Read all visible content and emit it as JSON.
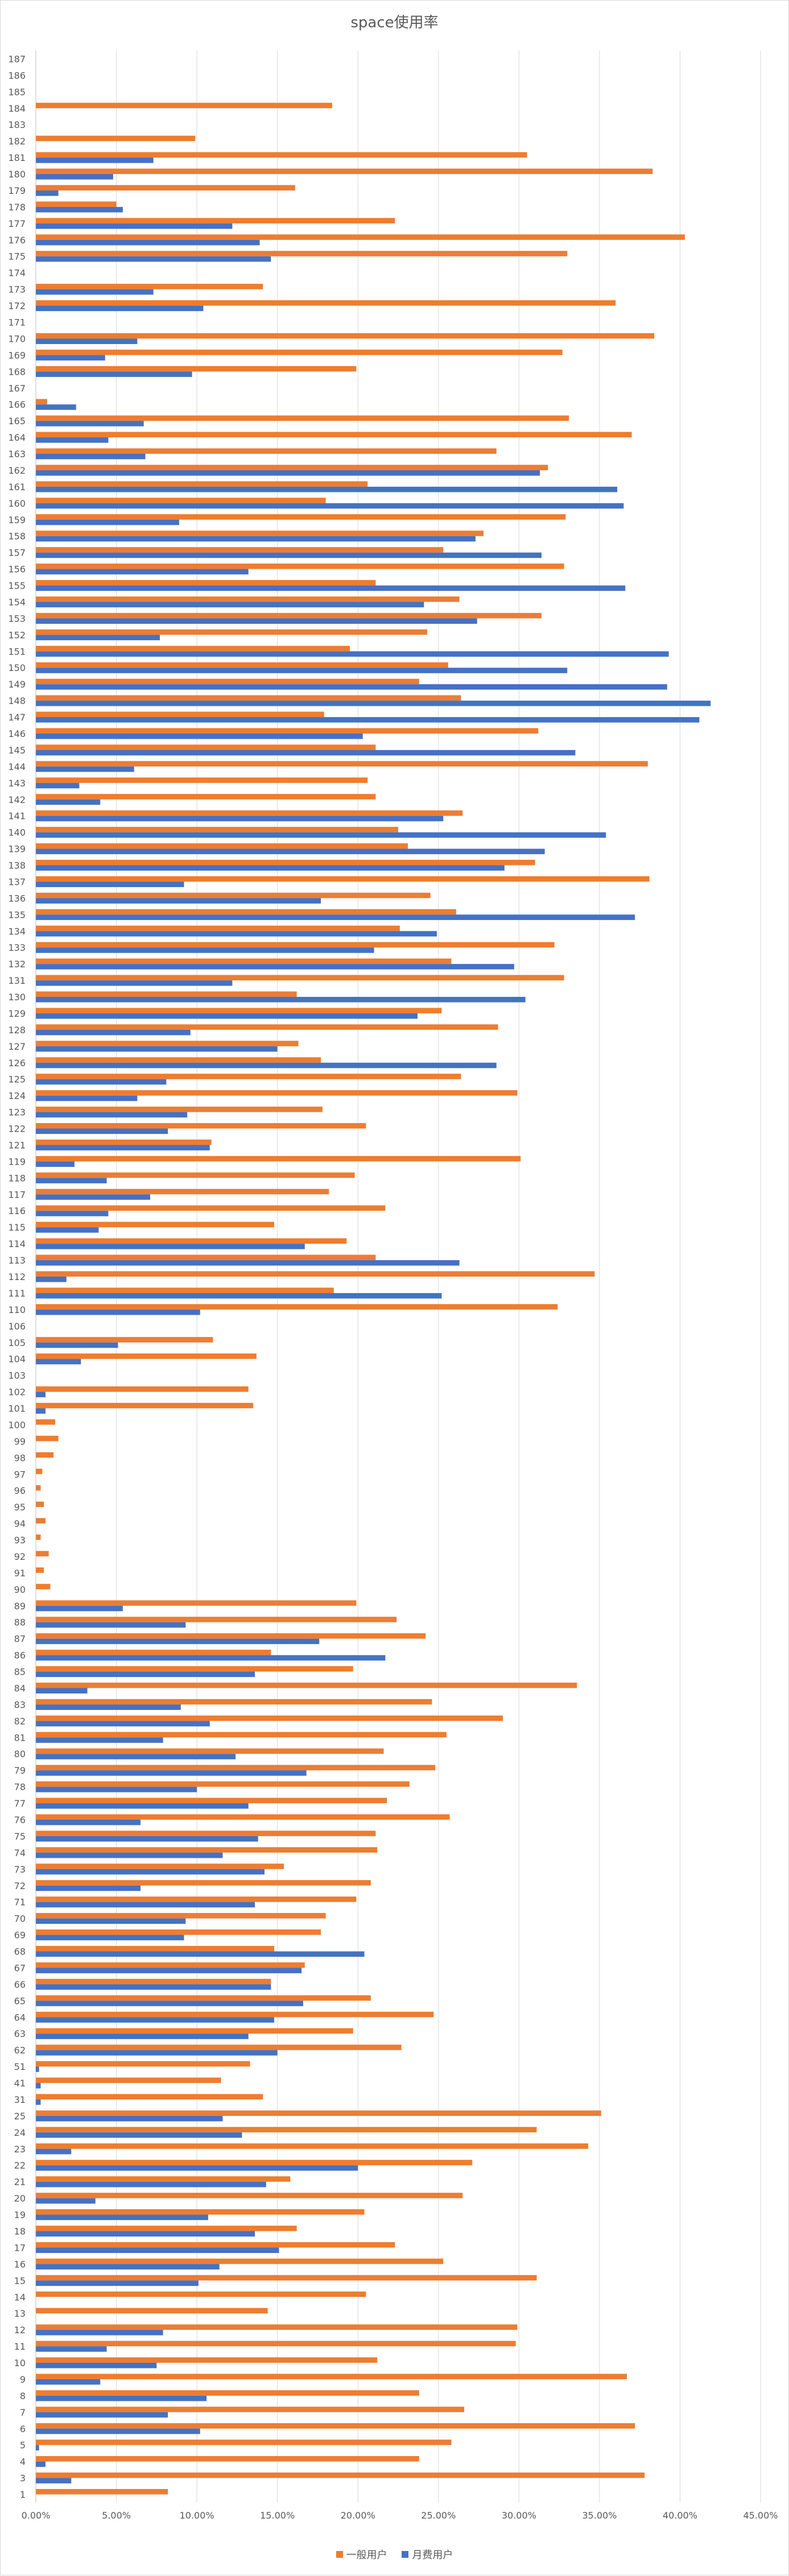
{
  "chart_data": {
    "type": "bar",
    "orientation": "horizontal",
    "title": "space使用率",
    "xlim": [
      0,
      45
    ],
    "x_ticks": [
      "0.00%",
      "5.00%",
      "10.00%",
      "15.00%",
      "20.00%",
      "25.00%",
      "30.00%",
      "35.00%",
      "40.00%",
      "45.00%"
    ],
    "grid": true,
    "legend_position": "bottom",
    "categories": [
      "1",
      "3",
      "4",
      "5",
      "6",
      "7",
      "8",
      "9",
      "10",
      "11",
      "12",
      "13",
      "14",
      "15",
      "16",
      "17",
      "18",
      "19",
      "20",
      "21",
      "22",
      "23",
      "24",
      "25",
      "31",
      "41",
      "51",
      "62",
      "63",
      "64",
      "65",
      "66",
      "67",
      "68",
      "69",
      "70",
      "71",
      "72",
      "73",
      "74",
      "75",
      "76",
      "77",
      "78",
      "79",
      "80",
      "81",
      "82",
      "83",
      "84",
      "85",
      "86",
      "87",
      "88",
      "89",
      "90",
      "91",
      "92",
      "93",
      "94",
      "95",
      "96",
      "97",
      "98",
      "99",
      "100",
      "101",
      "102",
      "103",
      "104",
      "105",
      "106",
      "110",
      "111",
      "112",
      "113",
      "114",
      "115",
      "116",
      "117",
      "118",
      "119",
      "121",
      "122",
      "123",
      "124",
      "125",
      "126",
      "127",
      "128",
      "129",
      "130",
      "131",
      "132",
      "133",
      "134",
      "135",
      "136",
      "137",
      "138",
      "139",
      "140",
      "141",
      "142",
      "143",
      "144",
      "145",
      "146",
      "147",
      "148",
      "149",
      "150",
      "151",
      "152",
      "153",
      "154",
      "155",
      "156",
      "157",
      "158",
      "159",
      "160",
      "161",
      "162",
      "163",
      "164",
      "165",
      "166",
      "167",
      "168",
      "169",
      "170",
      "171",
      "172",
      "173",
      "174",
      "175",
      "176",
      "177",
      "178",
      "179",
      "180",
      "181",
      "182",
      "183",
      "184",
      "185",
      "186",
      "187"
    ],
    "series": [
      {
        "name": "一般用户",
        "color": "#ed7d31",
        "values": [
          8.2,
          37.8,
          23.8,
          25.8,
          37.2,
          26.6,
          23.8,
          36.7,
          21.2,
          29.8,
          29.9,
          14.4,
          20.5,
          31.1,
          25.3,
          22.3,
          16.2,
          20.4,
          26.5,
          15.8,
          27.1,
          34.3,
          31.1,
          35.1,
          14.1,
          11.5,
          13.3,
          22.7,
          19.7,
          24.7,
          20.8,
          14.6,
          16.7,
          14.8,
          17.7,
          18.0,
          19.9,
          20.8,
          15.4,
          21.2,
          21.1,
          25.7,
          21.8,
          23.2,
          24.8,
          21.6,
          25.5,
          29.0,
          24.6,
          33.6,
          19.7,
          14.6,
          24.2,
          22.4,
          19.9,
          0.9,
          0.5,
          0.8,
          0.3,
          0.6,
          0.5,
          0.3,
          0.4,
          1.1,
          1.4,
          1.2,
          13.5,
          13.2,
          0.0,
          13.7,
          11.0,
          0.0,
          32.4,
          18.5,
          34.7,
          21.1,
          19.3,
          14.8,
          21.7,
          18.2,
          19.8,
          30.1,
          10.9,
          20.5,
          17.8,
          29.9,
          26.4,
          17.7,
          16.3,
          28.7,
          25.2,
          16.2,
          32.8,
          25.8,
          32.2,
          22.6,
          26.1,
          24.5,
          38.1,
          31.0,
          23.1,
          22.5,
          26.5,
          21.1,
          20.6,
          38.0,
          21.1,
          31.2,
          17.9,
          26.4,
          23.8,
          25.6,
          19.5,
          24.3,
          31.4,
          26.3,
          21.1,
          32.8,
          25.3,
          27.8,
          32.9,
          18.0,
          20.6,
          31.8,
          28.6,
          37.0,
          33.1,
          0.7,
          0.0,
          19.9,
          32.7,
          38.4,
          0.0,
          36.0,
          14.1,
          0.0,
          33.0,
          40.3,
          22.3,
          5.0,
          16.1,
          38.3,
          30.5,
          9.9,
          0.0,
          18.4,
          0.0,
          0.0,
          0.0
        ]
      },
      {
        "name": "月费用户",
        "color": "#4472c4",
        "values": [
          0.0,
          2.2,
          0.6,
          0.2,
          10.2,
          8.2,
          10.6,
          4.0,
          7.5,
          4.4,
          7.9,
          0.0,
          0.0,
          10.1,
          11.4,
          15.1,
          13.6,
          10.7,
          3.7,
          14.3,
          20.0,
          2.2,
          12.8,
          11.6,
          0.3,
          0.3,
          0.2,
          15.0,
          13.2,
          14.8,
          16.6,
          14.6,
          16.5,
          20.4,
          9.2,
          9.3,
          13.6,
          6.5,
          14.2,
          11.6,
          13.8,
          6.5,
          13.2,
          10.0,
          16.8,
          12.4,
          7.9,
          10.8,
          9.0,
          3.2,
          13.6,
          21.7,
          17.6,
          9.3,
          5.4,
          0.0,
          0.0,
          0.0,
          0.0,
          0.0,
          0.0,
          0.0,
          0.0,
          0.0,
          0.0,
          0.0,
          0.6,
          0.6,
          0.0,
          2.8,
          5.1,
          0.0,
          10.2,
          25.2,
          1.9,
          26.3,
          16.7,
          3.9,
          4.5,
          7.1,
          4.4,
          2.4,
          10.8,
          8.2,
          9.4,
          6.3,
          8.1,
          28.6,
          15.0,
          9.6,
          23.7,
          30.4,
          12.2,
          29.7,
          21.0,
          24.9,
          37.2,
          17.7,
          9.2,
          29.1,
          31.6,
          35.4,
          25.3,
          4.0,
          2.7,
          6.1,
          33.5,
          20.3,
          41.2,
          41.9,
          39.2,
          33.0,
          39.3,
          7.7,
          27.4,
          24.1,
          36.6,
          13.2,
          31.4,
          27.3,
          8.9,
          36.5,
          36.1,
          31.3,
          6.8,
          4.5,
          6.7,
          2.5,
          0.0,
          9.7,
          4.3,
          6.3,
          0.0,
          10.4,
          7.3,
          0.0,
          14.6,
          13.9,
          12.2,
          5.4,
          1.4,
          4.8,
          7.3,
          0.0,
          0.0,
          0.0,
          0.0,
          0.0,
          0.0
        ]
      }
    ]
  }
}
